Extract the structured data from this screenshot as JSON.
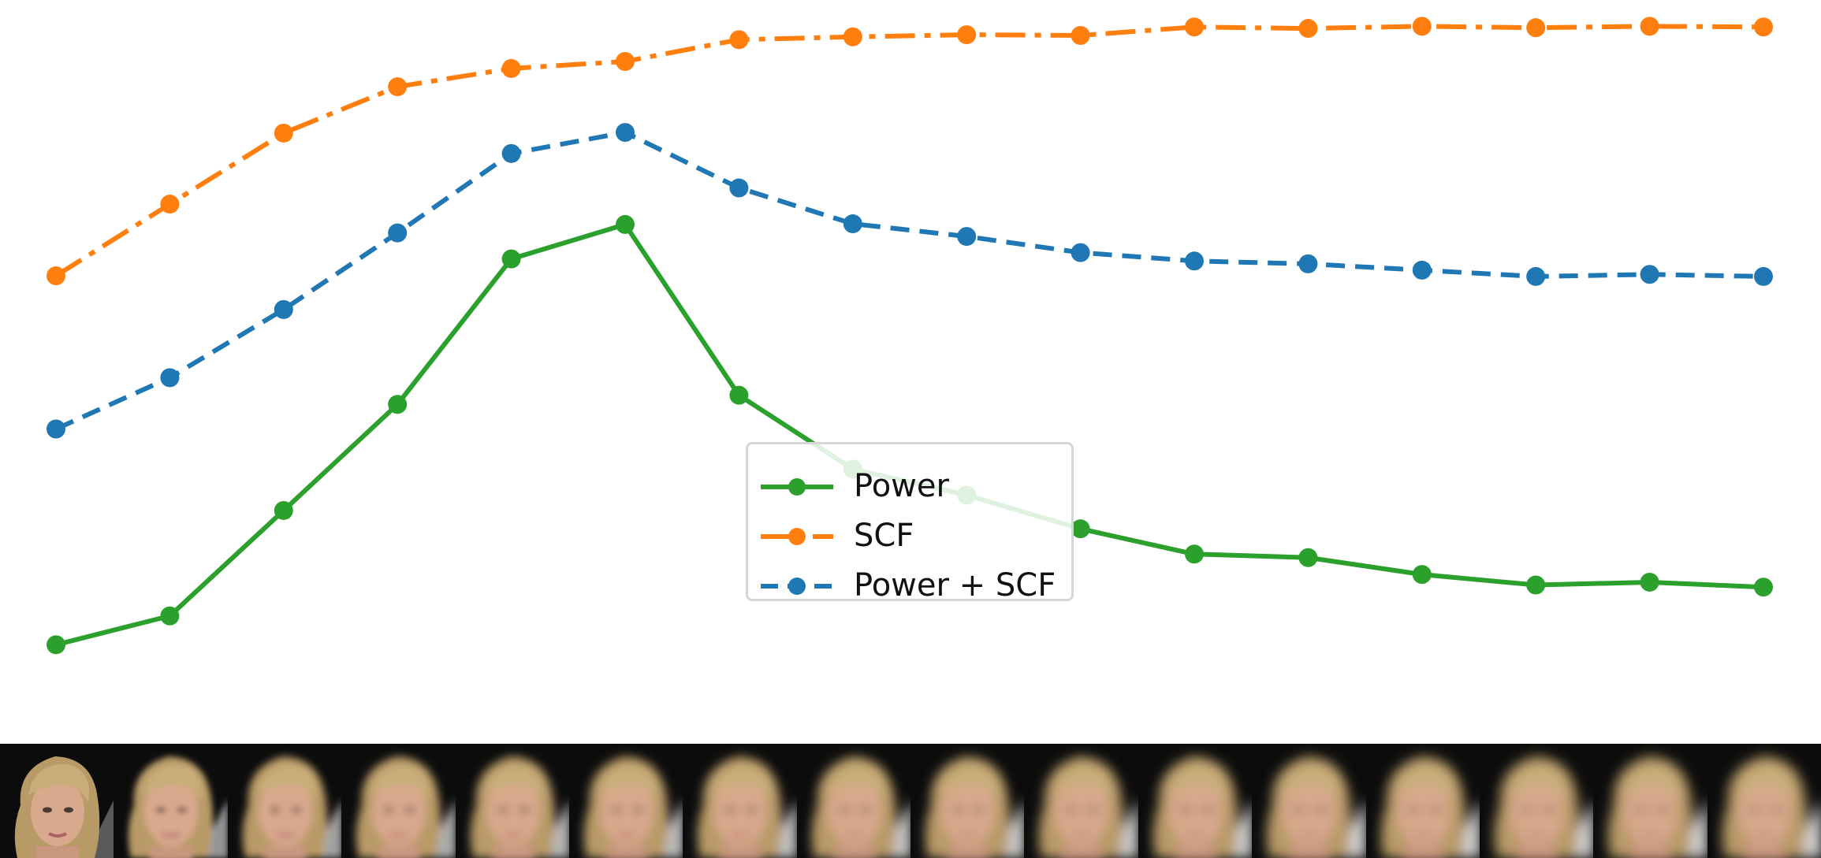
{
  "chart_data": {
    "type": "line",
    "title": "",
    "xlabel": "",
    "ylabel": "",
    "x": [
      1,
      2,
      3,
      4,
      5,
      6,
      7,
      8,
      9,
      10,
      11,
      12,
      13,
      14,
      15,
      16
    ],
    "ylim": [
      0,
      100
    ],
    "grid": false,
    "legend_position": "center",
    "series": [
      {
        "name": "Power",
        "color": "#2ca02c",
        "linestyle": "solid",
        "marker": "circle",
        "values": [
          10.5,
          14.6,
          29.6,
          44.7,
          65.4,
          70.3,
          46.0,
          35.5,
          31.8,
          27.0,
          23.4,
          22.9,
          20.5,
          19.0,
          19.4,
          18.7
        ]
      },
      {
        "name": "SCF",
        "color": "#ff7f0e",
        "linestyle": "dashdot",
        "marker": "circle",
        "values": [
          63.0,
          73.2,
          83.3,
          89.9,
          92.5,
          93.5,
          96.6,
          97.0,
          97.3,
          97.2,
          98.4,
          98.2,
          98.5,
          98.3,
          98.5,
          98.4
        ]
      },
      {
        "name": "Power + SCF",
        "color": "#1f77b4",
        "linestyle": "dashed",
        "marker": "circle",
        "values": [
          41.2,
          48.5,
          58.2,
          69.1,
          80.4,
          83.4,
          75.5,
          70.4,
          68.6,
          66.3,
          65.1,
          64.7,
          63.8,
          62.9,
          63.2,
          62.9
        ]
      }
    ]
  },
  "face_strip": {
    "count": 16,
    "blur_levels": [
      0,
      0.45,
      0.55,
      0.62,
      0.68,
      0.72,
      0.75,
      0.78,
      0.8,
      0.82,
      0.84,
      0.86,
      0.87,
      0.88,
      0.89,
      0.9
    ]
  }
}
